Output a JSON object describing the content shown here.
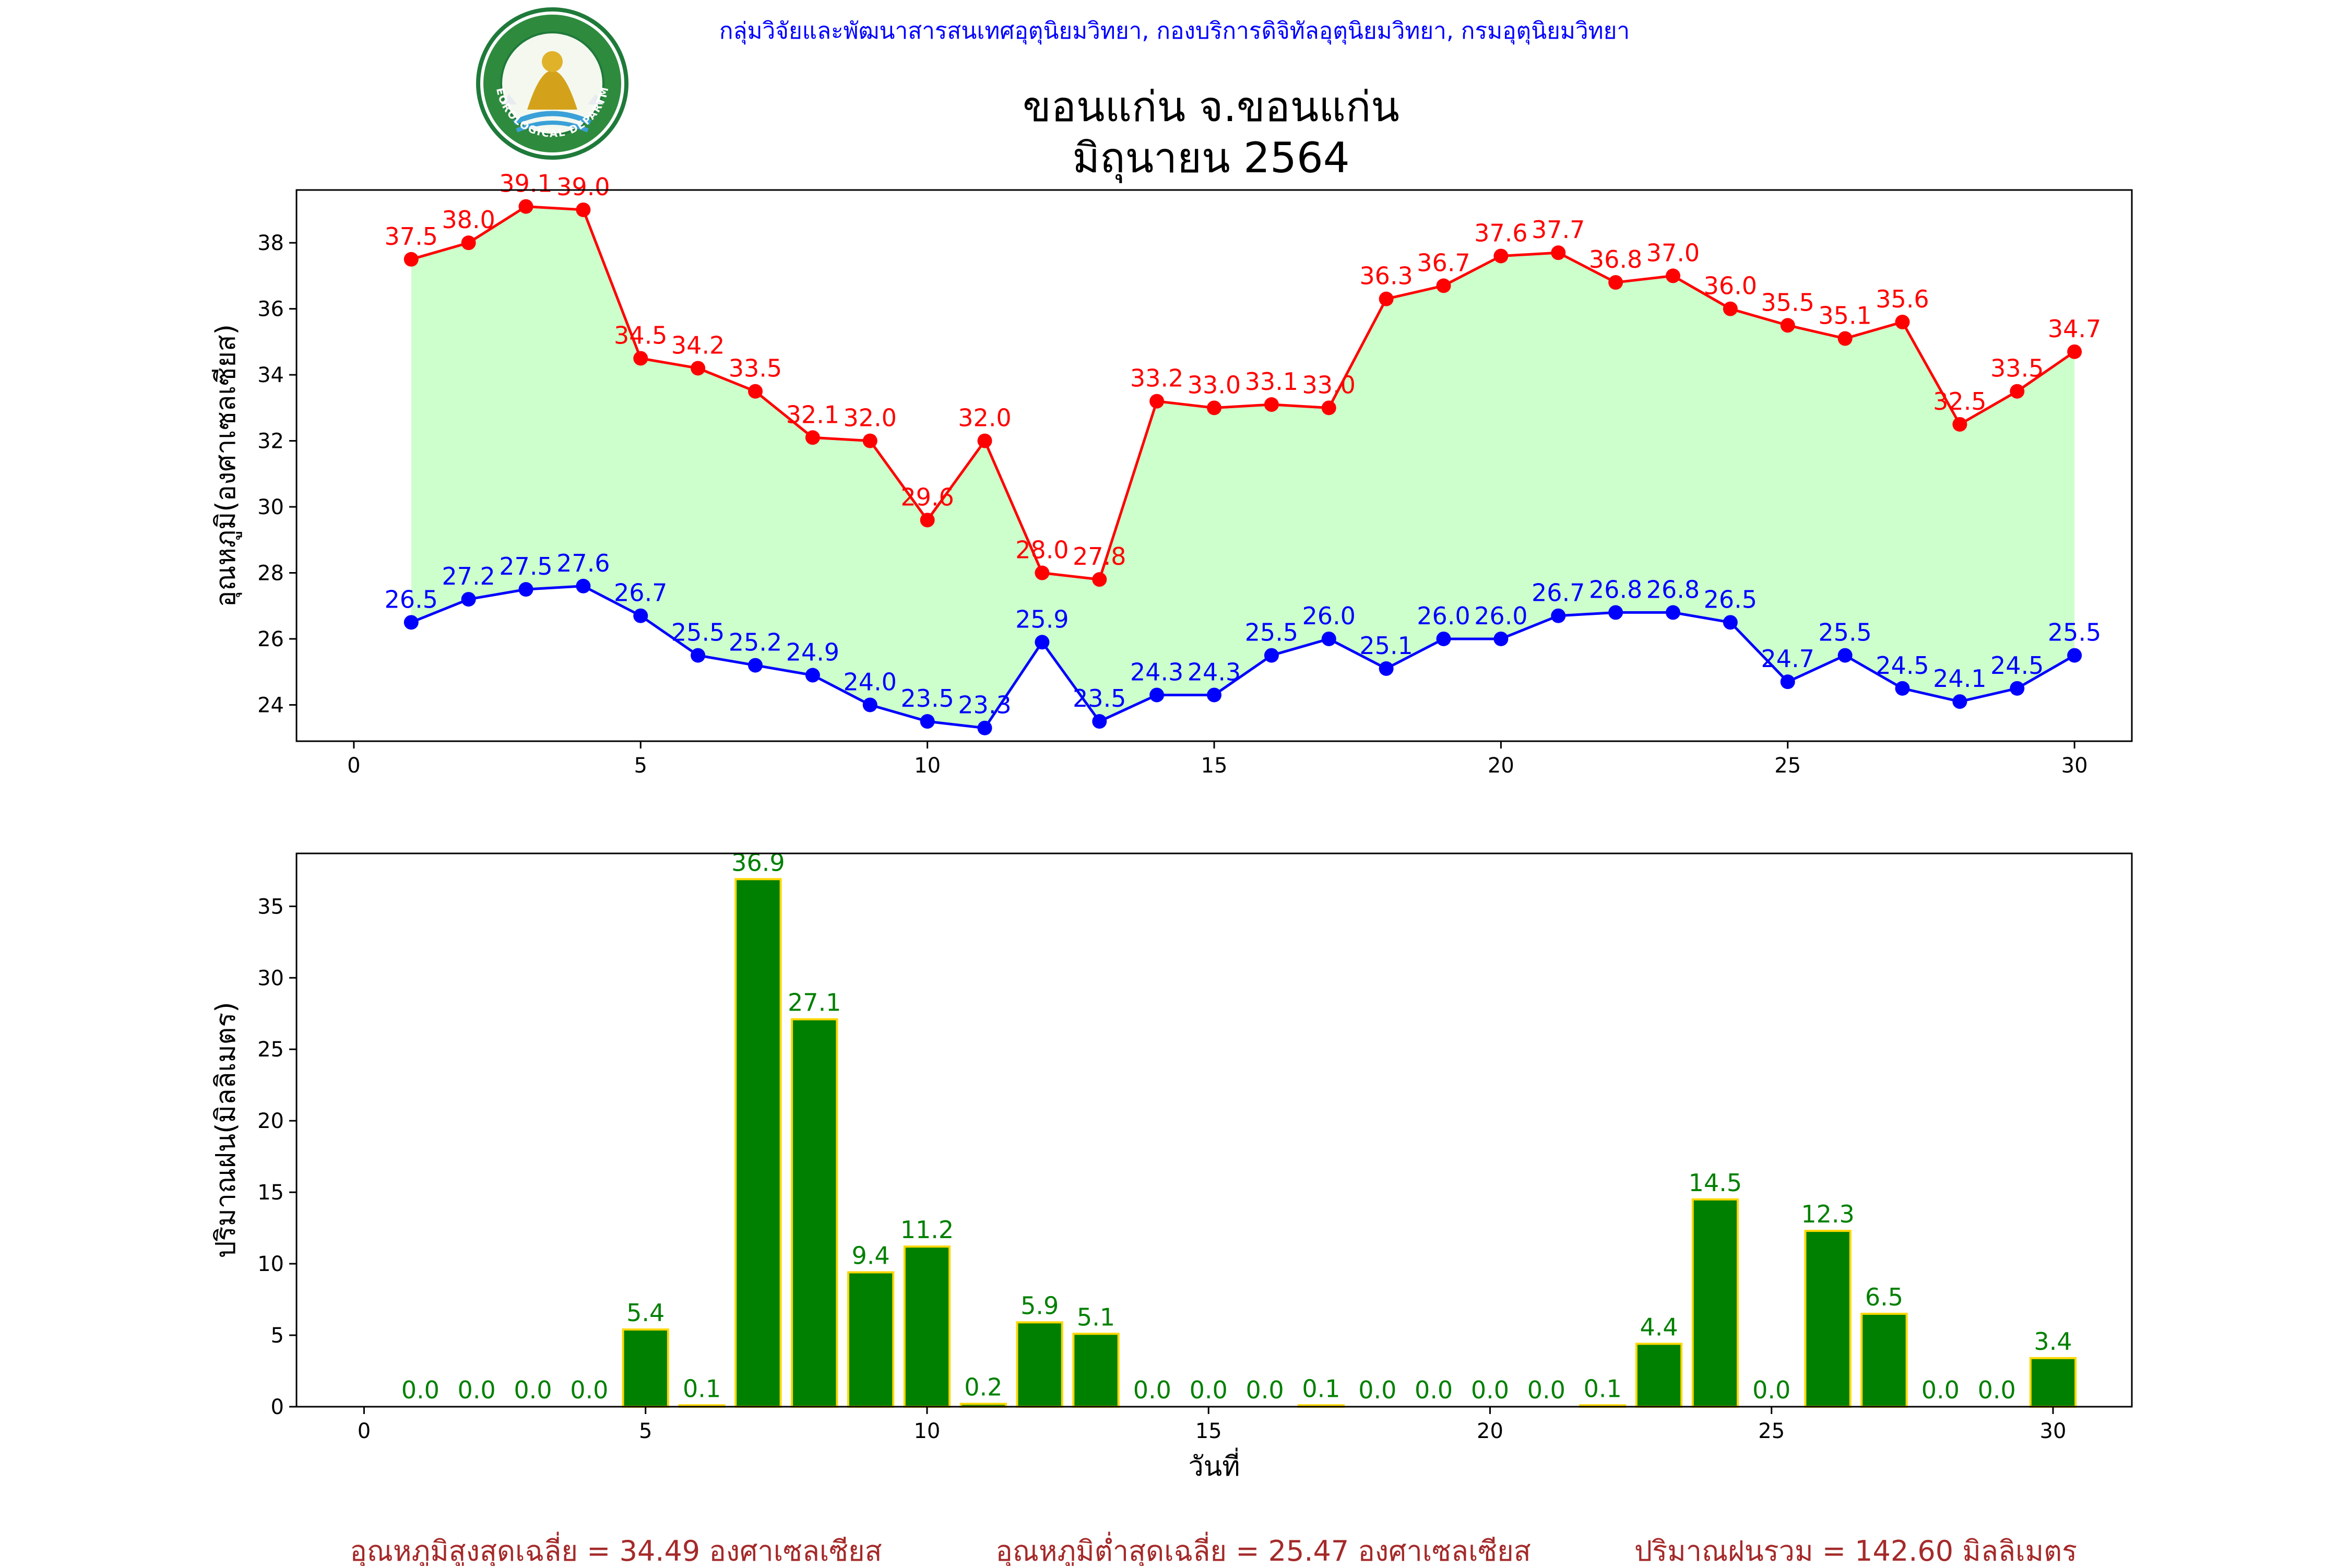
{
  "header": {
    "organization": "กลุ่มวิจัยและพัฒนาสารสนเทศอุตุนิยมวิทยา, กองบริการดิจิทัลอุตุนิยมวิทยา, กรมอุตุนิยมวิทยา",
    "title_line1": "ขอนแก่น จ.ขอนแก่น",
    "title_line2": "มิถุนายน 2564",
    "logo_text": "METEOROLOGICAL DEPARTMENT"
  },
  "colors": {
    "org_text": "#0000ff",
    "max_line": "#ff0000",
    "min_line": "#0000ff",
    "fill": "#ccffcc",
    "bar": "#008000",
    "bar_edge": "#ffd700",
    "rain_label": "#008000",
    "footer_text": "#a52a2a"
  },
  "chart_data": [
    {
      "type": "line",
      "ylabel": "อุณหภูมิ(องศาเซลเซียส)",
      "xlabel": "",
      "xlim": [
        -1,
        31
      ],
      "ylim": [
        22.9,
        39.6
      ],
      "x_ticks": [
        0,
        5,
        10,
        15,
        20,
        25,
        30
      ],
      "y_ticks": [
        24,
        26,
        28,
        30,
        32,
        34,
        36,
        38
      ],
      "grid": false,
      "fill_between": true,
      "x": [
        1,
        2,
        3,
        4,
        5,
        6,
        7,
        8,
        9,
        10,
        11,
        12,
        13,
        14,
        15,
        16,
        17,
        18,
        19,
        20,
        21,
        22,
        23,
        24,
        25,
        26,
        27,
        28,
        29,
        30
      ],
      "series": [
        {
          "values": [
            37.5,
            38.0,
            39.1,
            39.0,
            34.5,
            34.2,
            33.5,
            32.1,
            32.0,
            29.6,
            32.0,
            28.0,
            27.8,
            33.2,
            33.0,
            33.1,
            33.0,
            36.3,
            36.7,
            37.6,
            37.7,
            36.8,
            37.0,
            36.0,
            35.5,
            35.1,
            35.6,
            32.5,
            33.5,
            34.7
          ],
          "color": "#ff0000"
        },
        {
          "values": [
            26.5,
            27.2,
            27.5,
            27.6,
            26.7,
            25.5,
            25.2,
            24.9,
            24.0,
            23.5,
            23.3,
            25.9,
            23.5,
            24.3,
            24.3,
            25.5,
            26.0,
            25.1,
            26.0,
            26.0,
            26.7,
            26.8,
            26.8,
            26.5,
            24.7,
            25.5,
            24.5,
            24.1,
            24.5,
            25.5
          ],
          "color": "#0000ff"
        }
      ]
    },
    {
      "type": "bar",
      "ylabel": "ปริมาณฝน(มิลลิเมตร)",
      "xlabel": "วันที่",
      "xlim": [
        -1.2,
        31.4
      ],
      "ylim": [
        0,
        38.7
      ],
      "x_ticks": [
        0,
        5,
        10,
        15,
        20,
        25,
        30
      ],
      "y_ticks": [
        0,
        5,
        10,
        15,
        20,
        25,
        30,
        35
      ],
      "grid": false,
      "x": [
        1,
        2,
        3,
        4,
        5,
        6,
        7,
        8,
        9,
        10,
        11,
        12,
        13,
        14,
        15,
        16,
        17,
        18,
        19,
        20,
        21,
        22,
        23,
        24,
        25,
        26,
        27,
        28,
        29,
        30
      ],
      "values": [
        0.0,
        0.0,
        0.0,
        0.0,
        5.4,
        0.1,
        36.9,
        27.1,
        9.4,
        11.2,
        0.2,
        5.9,
        5.1,
        0.0,
        0.0,
        0.0,
        0.1,
        0.0,
        0.0,
        0.0,
        0.0,
        0.1,
        4.4,
        14.5,
        0.0,
        12.3,
        6.5,
        0.0,
        0.0,
        3.4
      ]
    }
  ],
  "footer": {
    "avg_max": "อุณหภูมิสูงสุดเฉลี่ย = 34.49 องศาเซลเซียส",
    "avg_min": "อุณหภูมิต่ำสุดเฉลี่ย = 25.47 องศาเซลเซียส",
    "total_rain": "ปริมาณฝนรวม = 142.60 มิลลิเมตร"
  }
}
